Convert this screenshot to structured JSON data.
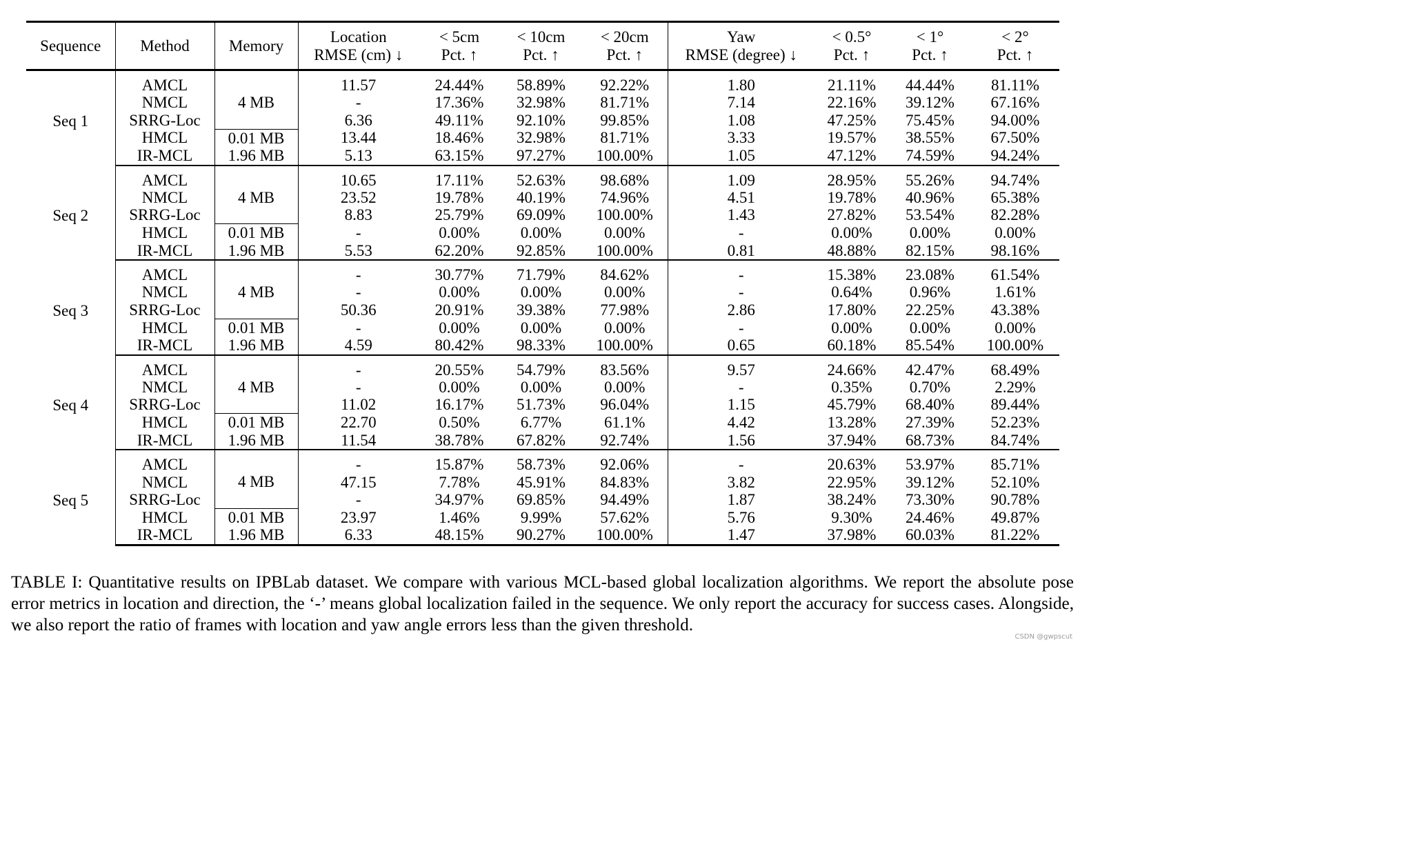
{
  "table": {
    "headers": {
      "sequence": "Sequence",
      "method": "Method",
      "memory": "Memory",
      "location_rmse": [
        "Location",
        "RMSE (cm) ↓"
      ],
      "lt_5cm": [
        "< 5cm",
        "Pct. ↑"
      ],
      "lt_10cm": [
        "< 10cm",
        "Pct. ↑"
      ],
      "lt_20cm": [
        "< 20cm",
        "Pct. ↑"
      ],
      "yaw_rmse": [
        "Yaw",
        "RMSE (degree) ↓"
      ],
      "lt_05deg": [
        "< 0.5°",
        "Pct. ↑"
      ],
      "lt_1deg": [
        "< 1°",
        "Pct. ↑"
      ],
      "lt_2deg": [
        "< 2°",
        "Pct. ↑"
      ]
    },
    "memory_values": {
      "shared": "4 MB",
      "hmcl": "0.01 MB",
      "irmcl": "1.96 MB"
    },
    "sequences": [
      {
        "name": "Seq 1",
        "rows": [
          {
            "method": "AMCL",
            "values": [
              "11.57",
              "24.44%",
              "58.89%",
              "92.22%",
              "1.80",
              "21.11%",
              "44.44%",
              "81.11%"
            ],
            "bold": []
          },
          {
            "method": "NMCL",
            "values": [
              "-",
              "17.36%",
              "32.98%",
              "81.71%",
              "7.14",
              "22.16%",
              "39.12%",
              "67.16%"
            ],
            "bold": []
          },
          {
            "method": "SRRG-Loc",
            "values": [
              "6.36",
              "49.11%",
              "92.10%",
              "99.85%",
              "1.08",
              "47.25%",
              "75.45%",
              "94.00%"
            ],
            "bold": [
              5,
              6
            ]
          },
          {
            "method": "HMCL",
            "values": [
              "13.44",
              "18.46%",
              "32.98%",
              "81.71%",
              "3.33",
              "19.57%",
              "38.55%",
              "67.50%"
            ],
            "bold": []
          },
          {
            "method": "IR-MCL",
            "values": [
              "5.13",
              "63.15%",
              "97.27%",
              "100.00%",
              "1.05",
              "47.12%",
              "74.59%",
              "94.24%"
            ],
            "bold": [
              0,
              1,
              2,
              3,
              4,
              7
            ]
          }
        ]
      },
      {
        "name": "Seq 2",
        "rows": [
          {
            "method": "AMCL",
            "values": [
              "10.65",
              "17.11%",
              "52.63%",
              "98.68%",
              "1.09",
              "28.95%",
              "55.26%",
              "94.74%"
            ],
            "bold": []
          },
          {
            "method": "NMCL",
            "values": [
              "23.52",
              "19.78%",
              "40.19%",
              "74.96%",
              "4.51",
              "19.78%",
              "40.96%",
              "65.38%"
            ],
            "bold": []
          },
          {
            "method": "SRRG-Loc",
            "values": [
              "8.83",
              "25.79%",
              "69.09%",
              "100.00%",
              "1.43",
              "27.82%",
              "53.54%",
              "82.28%"
            ],
            "bold": [
              3
            ]
          },
          {
            "method": "HMCL",
            "values": [
              "-",
              "0.00%",
              "0.00%",
              "0.00%",
              "-",
              "0.00%",
              "0.00%",
              "0.00%"
            ],
            "bold": []
          },
          {
            "method": "IR-MCL",
            "values": [
              "5.53",
              "62.20%",
              "92.85%",
              "100.00%",
              "0.81",
              "48.88%",
              "82.15%",
              "98.16%"
            ],
            "bold": [
              0,
              1,
              2,
              3,
              4,
              5,
              6,
              7
            ]
          }
        ]
      },
      {
        "name": "Seq 3",
        "rows": [
          {
            "method": "AMCL",
            "values": [
              "-",
              "30.77%",
              "71.79%",
              "84.62%",
              "-",
              "15.38%",
              "23.08%",
              "61.54%"
            ],
            "bold": []
          },
          {
            "method": "NMCL",
            "values": [
              "-",
              "0.00%",
              "0.00%",
              "0.00%",
              "-",
              "0.64%",
              "0.96%",
              "1.61%"
            ],
            "bold": []
          },
          {
            "method": "SRRG-Loc",
            "values": [
              "50.36",
              "20.91%",
              "39.38%",
              "77.98%",
              "2.86",
              "17.80%",
              "22.25%",
              "43.38%"
            ],
            "bold": []
          },
          {
            "method": "HMCL",
            "values": [
              "-",
              "0.00%",
              "0.00%",
              "0.00%",
              "-",
              "0.00%",
              "0.00%",
              "0.00%"
            ],
            "bold": []
          },
          {
            "method": "IR-MCL",
            "values": [
              "4.59",
              "80.42%",
              "98.33%",
              "100.00%",
              "0.65",
              "60.18%",
              "85.54%",
              "100.00%"
            ],
            "bold": [
              0,
              1,
              2,
              3,
              4,
              5,
              6,
              7
            ]
          }
        ]
      },
      {
        "name": "Seq 4",
        "rows": [
          {
            "method": "AMCL",
            "values": [
              "-",
              "20.55%",
              "54.79%",
              "83.56%",
              "9.57",
              "24.66%",
              "42.47%",
              "68.49%"
            ],
            "bold": []
          },
          {
            "method": "NMCL",
            "values": [
              "-",
              "0.00%",
              "0.00%",
              "0.00%",
              "-",
              "0.35%",
              "0.70%",
              "2.29%"
            ],
            "bold": []
          },
          {
            "method": "SRRG-Loc",
            "values": [
              "11.02",
              "16.17%",
              "51.73%",
              "96.04%",
              "1.15",
              "45.79%",
              "68.40%",
              "89.44%"
            ],
            "bold": [
              0,
              3,
              4,
              5,
              7
            ]
          },
          {
            "method": "HMCL",
            "values": [
              "22.70",
              "0.50%",
              "6.77%",
              "61.1%",
              "4.42",
              "13.28%",
              "27.39%",
              "52.23%"
            ],
            "bold": []
          },
          {
            "method": "IR-MCL",
            "values": [
              "11.54",
              "38.78%",
              "67.82%",
              "92.74%",
              "1.56",
              "37.94%",
              "68.73%",
              "84.74%"
            ],
            "bold": [
              1,
              2,
              6
            ]
          }
        ]
      },
      {
        "name": "Seq 5",
        "rows": [
          {
            "method": "AMCL",
            "values": [
              "-",
              "15.87%",
              "58.73%",
              "92.06%",
              "-",
              "20.63%",
              "53.97%",
              "85.71%"
            ],
            "bold": []
          },
          {
            "method": "NMCL",
            "values": [
              "47.15",
              "7.78%",
              "45.91%",
              "84.83%",
              "3.82",
              "22.95%",
              "39.12%",
              "52.10%"
            ],
            "bold": []
          },
          {
            "method": "SRRG-Loc",
            "values": [
              "-",
              "34.97%",
              "69.85%",
              "94.49%",
              "1.87",
              "38.24%",
              "73.30%",
              "90.78%"
            ],
            "bold": [
              5,
              6,
              7
            ]
          },
          {
            "method": "HMCL",
            "values": [
              "23.97",
              "1.46%",
              "9.99%",
              "57.62%",
              "5.76",
              "9.30%",
              "24.46%",
              "49.87%"
            ],
            "bold": []
          },
          {
            "method": "IR-MCL",
            "values": [
              "6.33",
              "48.15%",
              "90.27%",
              "100.00%",
              "1.47",
              "37.98%",
              "60.03%",
              "81.22%"
            ],
            "bold": [
              0,
              1,
              2,
              3,
              4
            ]
          }
        ]
      }
    ]
  },
  "caption": "TABLE I: Quantitative results on IPBLab dataset. We compare with various MCL-based global localization algorithms. We report the absolute pose error metrics in location and direction, the ‘-’ means global localization failed in the sequence. We only report the accuracy for success cases. Alongside, we also report the ratio of frames with location and yaw angle errors less than the given threshold.",
  "watermark": "CSDN @gwpscut"
}
